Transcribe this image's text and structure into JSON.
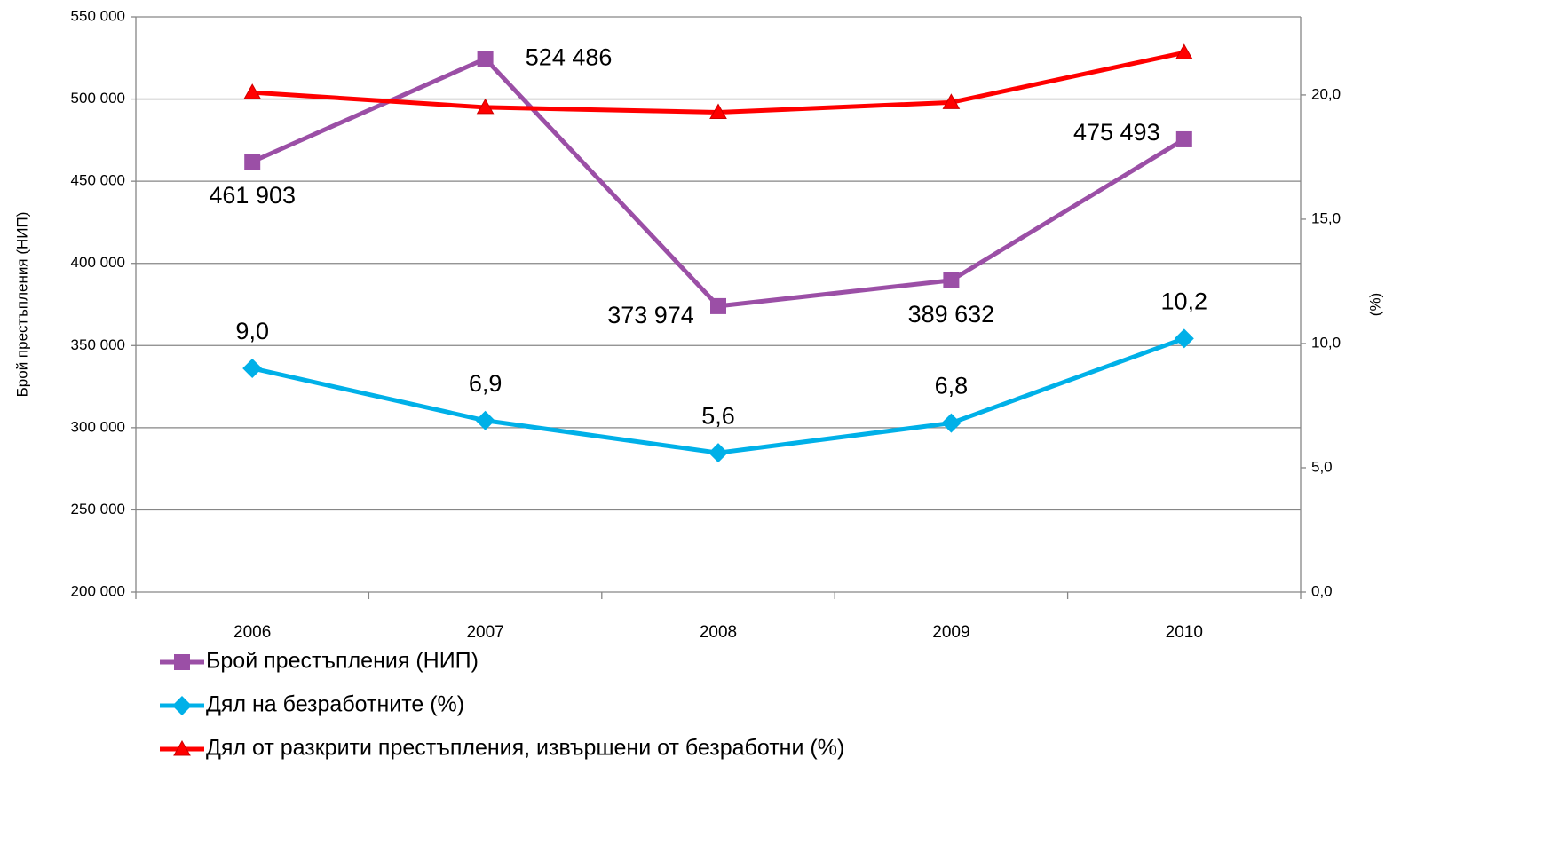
{
  "chart_data": {
    "type": "line",
    "y_label": "Брой престъпления (НИП)",
    "y2_label": "(%)",
    "categories": [
      "2006",
      "2007",
      "2008",
      "2009",
      "2010"
    ],
    "ylim": [
      200000,
      550000
    ],
    "yticks": [
      {
        "value": 200000,
        "label": "200 000"
      },
      {
        "value": 250000,
        "label": "250 000"
      },
      {
        "value": 300000,
        "label": "300 000"
      },
      {
        "value": 350000,
        "label": "350 000"
      },
      {
        "value": 400000,
        "label": "400 000"
      },
      {
        "value": 450000,
        "label": "450 000"
      },
      {
        "value": 500000,
        "label": "500 000"
      },
      {
        "value": 550000,
        "label": "550 000"
      }
    ],
    "y2lim": [
      0,
      23.14
    ],
    "y2ticks": [
      {
        "value": 0,
        "label": "0,0"
      },
      {
        "value": 5,
        "label": "5,0"
      },
      {
        "value": 10,
        "label": "10,0"
      },
      {
        "value": 15,
        "label": "15,0"
      },
      {
        "value": 20,
        "label": "20,0"
      }
    ],
    "grid": true,
    "legend": "bottom-left",
    "series": [
      {
        "name": "Брой престъпления (НИП)",
        "color": "#9b4fa6",
        "marker": "square",
        "values": [
          461903,
          524486,
          373974,
          389632,
          475493
        ],
        "value_labels": [
          "461 903",
          "524 486",
          "373 974",
          "389 632",
          "475 493"
        ]
      },
      {
        "name": "Дял на безработните (%)",
        "color": "#00b0e8",
        "marker": "diamond",
        "axis": "y2",
        "values": [
          9.0,
          6.9,
          5.6,
          6.8,
          10.2
        ],
        "value_labels": [
          "9,0",
          "6,9",
          "5,6",
          "6,8",
          "10,2"
        ]
      },
      {
        "name": "Дял от разкрити престъпления, извършени от безработни (%)",
        "color": "#ff0000",
        "marker": "triangle",
        "axis": "y2",
        "values": [
          20.1,
          19.5,
          19.3,
          19.7,
          21.7
        ]
      }
    ]
  }
}
